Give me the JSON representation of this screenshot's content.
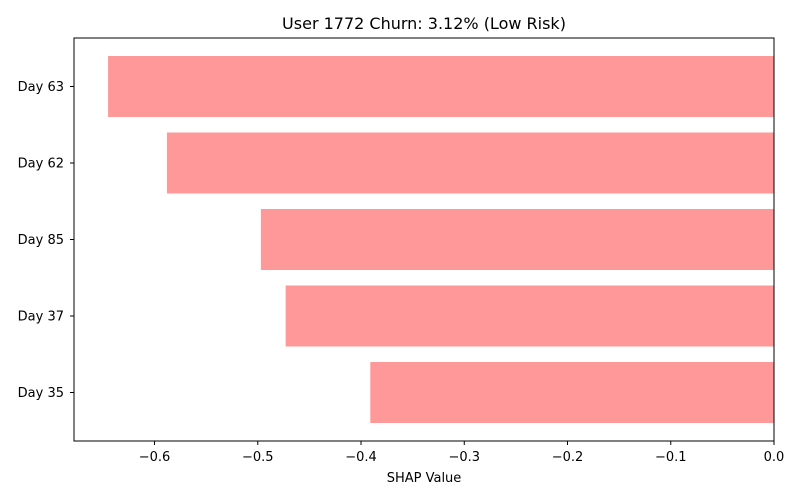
{
  "chart_data": {
    "type": "bar",
    "orientation": "horizontal",
    "title": "User 1772 Churn: 3.12% (Low Risk)",
    "xlabel": "SHAP Value",
    "ylabel": "",
    "categories": [
      "Day 63",
      "Day 62",
      "Day 85",
      "Day 37",
      "Day 35"
    ],
    "values": [
      -0.645,
      -0.588,
      -0.497,
      -0.473,
      -0.391
    ],
    "xlim": [
      -0.678,
      0.0
    ],
    "xticks": [
      -0.6,
      -0.5,
      -0.4,
      -0.3,
      -0.2,
      -0.1,
      0.0
    ],
    "xtick_labels": [
      "−0.6",
      "−0.5",
      "−0.4",
      "−0.3",
      "−0.2",
      "−0.1",
      "0.0"
    ],
    "bar_color": "#ff9999",
    "grid": false,
    "legend": "none"
  }
}
